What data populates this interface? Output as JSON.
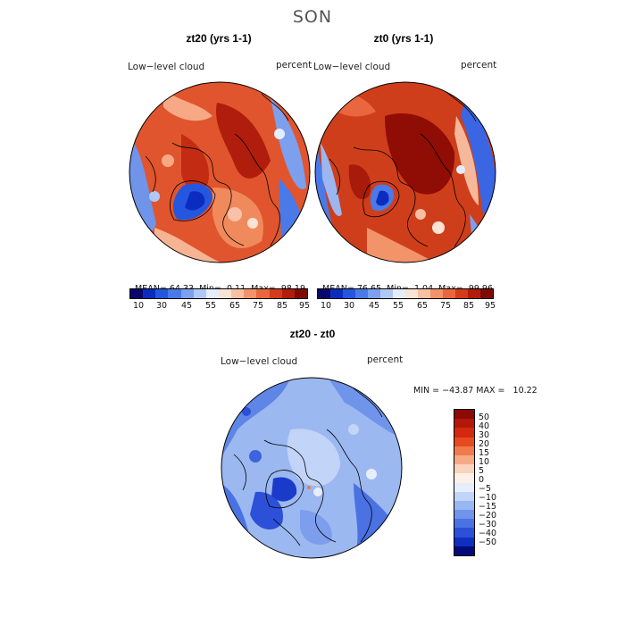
{
  "figure": {
    "title": "SON",
    "palette": [
      "#08086b",
      "#0b2cbf",
      "#2456e0",
      "#4a7ae8",
      "#7ca0ee",
      "#b0c8f4",
      "#e4edfb",
      "#fbe3d5",
      "#f8bfa2",
      "#f2936a",
      "#e9663f",
      "#d43b1c",
      "#b01d0c",
      "#7f0a04"
    ]
  },
  "top_panels": [
    {
      "title": "zt20 (yrs 1-1)",
      "field_label": "Low−level cloud",
      "units": "percent",
      "stats": {
        "mean_label": "MEAN=",
        "mean": "64.33",
        "min_label": "Min=",
        "min": "0.11",
        "max_label": "Max=",
        "max": "98.19"
      },
      "colorbar_ticks": [
        "10",
        "30",
        "45",
        "55",
        "65",
        "75",
        "85",
        "95"
      ],
      "map_base": "#e0552d"
    },
    {
      "title": "zt0 (yrs 1-1)",
      "field_label": "Low−level cloud",
      "units": "percent",
      "stats": {
        "mean_label": "MEAN=",
        "mean": "76.65",
        "min_label": "Min=",
        "min": "1.04",
        "max_label": "Max=",
        "max": "99.96"
      },
      "colorbar_ticks": [
        "10",
        "30",
        "45",
        "55",
        "65",
        "75",
        "85",
        "95"
      ],
      "map_base": "#cf3e1b"
    }
  ],
  "diff_panel": {
    "title": "zt20 - zt0",
    "field_label": "Low−level cloud",
    "units": "percent",
    "minmax": "MIN = −43.87 MAX =   10.22",
    "colorbar_ticks": [
      "50",
      "40",
      "30",
      "20",
      "15",
      "10",
      "5",
      "0",
      "−5",
      "−10",
      "−15",
      "−20",
      "−30",
      "−40",
      "−50"
    ],
    "colorbar_colors": [
      "#8b0a04",
      "#b3170a",
      "#d2290f",
      "#e64a20",
      "#f07a4c",
      "#f7a985",
      "#fbd3bd",
      "#fdf0e8",
      "#e6eefc",
      "#c2d4f7",
      "#98b6f1",
      "#6f94ea",
      "#4a72e3",
      "#2c50d8",
      "#0f2fbf",
      "#040a78"
    ]
  }
}
